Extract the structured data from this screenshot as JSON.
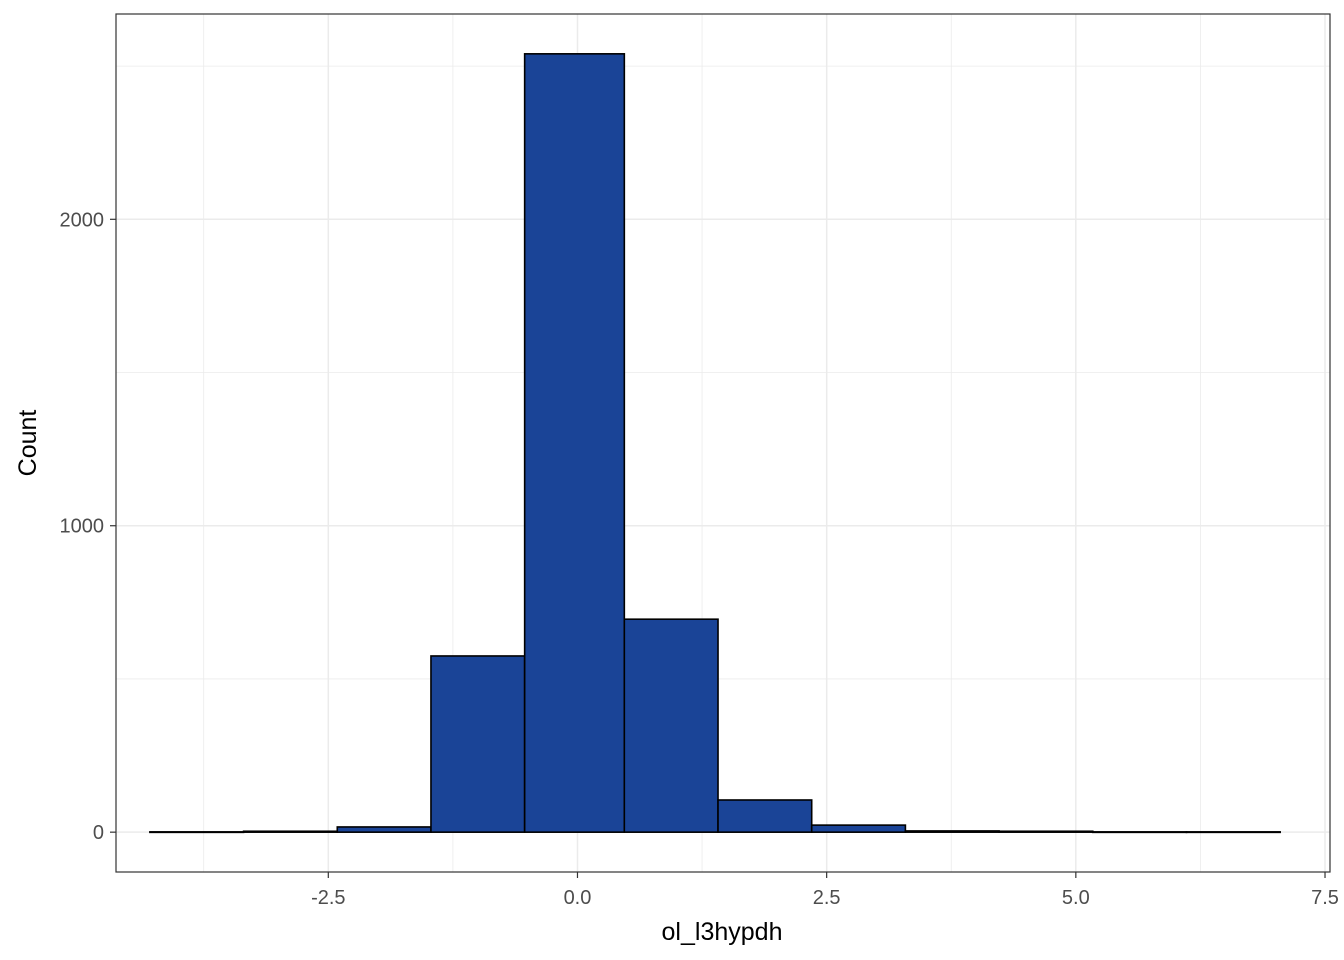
{
  "chart_data": {
    "type": "bar",
    "subtype": "histogram",
    "title": "",
    "xlabel": "ol_l3hypdh",
    "ylabel": "Count",
    "x_ticks": [
      -2.5,
      0.0,
      2.5,
      5.0,
      7.5
    ],
    "x_tick_labels": [
      "-2.5",
      "0.0",
      "2.5",
      "5.0",
      "7.5"
    ],
    "y_ticks": [
      0,
      1000,
      2000
    ],
    "y_tick_labels": [
      "0",
      "1000",
      "2000"
    ],
    "xlim": [
      -4.63,
      7.55
    ],
    "ylim": [
      -130,
      2670
    ],
    "grid": true,
    "legend": "none",
    "bar_fill": "#1a4497",
    "bar_stroke": "#000000",
    "bins": [
      {
        "x0": -4.29,
        "x1": -3.35,
        "count": 1
      },
      {
        "x0": -3.35,
        "x1": -2.41,
        "count": 3
      },
      {
        "x0": -2.41,
        "x1": -1.47,
        "count": 17
      },
      {
        "x0": -1.47,
        "x1": -0.53,
        "count": 575
      },
      {
        "x0": -0.53,
        "x1": 0.47,
        "count": 2540
      },
      {
        "x0": 0.47,
        "x1": 1.41,
        "count": 695
      },
      {
        "x0": 1.41,
        "x1": 2.35,
        "count": 105
      },
      {
        "x0": 2.35,
        "x1": 3.29,
        "count": 23
      },
      {
        "x0": 3.29,
        "x1": 4.23,
        "count": 4
      },
      {
        "x0": 4.23,
        "x1": 5.17,
        "count": 3
      },
      {
        "x0": 5.17,
        "x1": 6.11,
        "count": 1
      },
      {
        "x0": 6.11,
        "x1": 7.05,
        "count": 1
      }
    ]
  }
}
